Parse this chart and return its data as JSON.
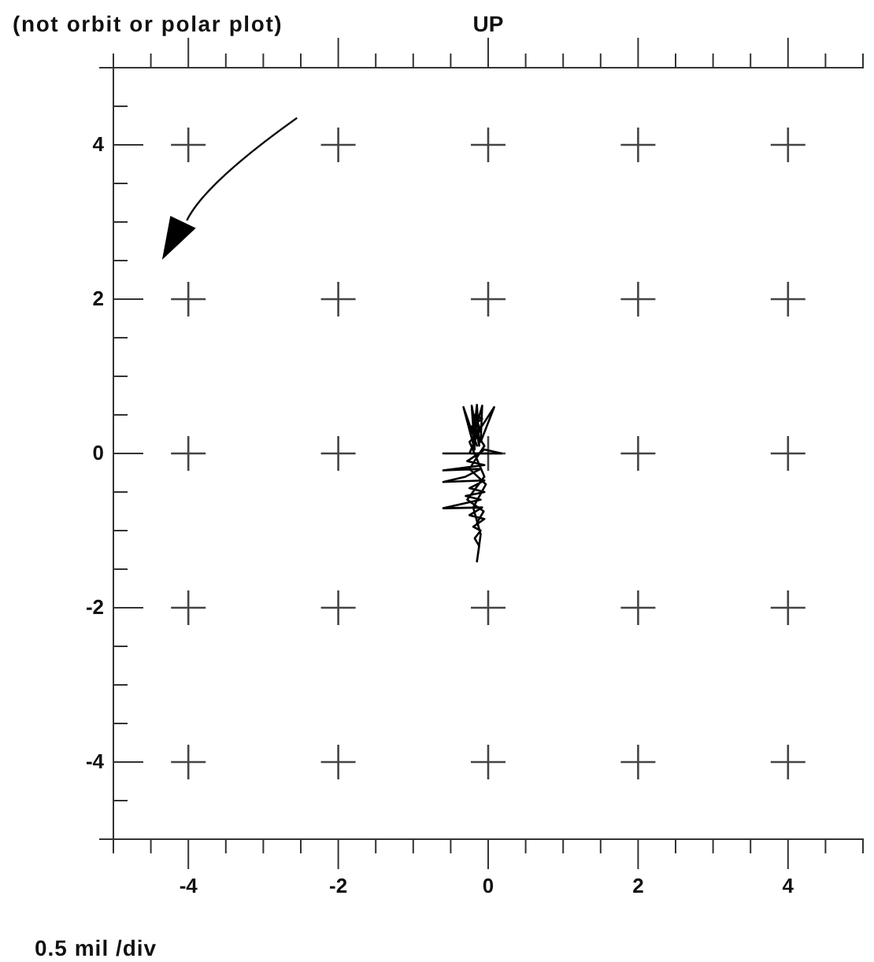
{
  "chart_data": {
    "type": "line",
    "title": "(not orbit or polar plot)",
    "annotations": [
      "UP",
      "0.5 mil /div"
    ],
    "series": [
      {
        "color": "#000000",
        "x": [
          -0.15,
          -0.33,
          -0.18,
          -0.22,
          -0.12,
          -0.15,
          -0.2,
          -0.08,
          -0.1,
          0.08,
          -0.12,
          -0.25,
          -0.6,
          -0.1,
          0.18,
          -0.05,
          -0.28,
          -0.05,
          -0.6,
          -0.1,
          -0.3,
          -0.6,
          -0.05,
          -0.25,
          -0.05,
          -0.3,
          -0.1,
          -0.6,
          -0.08,
          -0.25,
          -0.05,
          -0.2,
          -0.1,
          -0.18,
          -0.12,
          -0.15,
          -0.1,
          -0.2,
          -0.03,
          -0.25,
          -0.05,
          -0.22,
          -0.08,
          -0.18,
          -0.1,
          -0.25,
          -0.05,
          -0.28,
          -0.06,
          -0.15
        ],
        "values": [
          0.1,
          0.6,
          0.05,
          0.62,
          0.1,
          0.63,
          0.2,
          0.62,
          0.15,
          0.6,
          0.3,
          0.0,
          0.0,
          0.0,
          0.0,
          0.05,
          -0.1,
          -0.15,
          -0.22,
          -0.2,
          -0.3,
          -0.37,
          -0.35,
          -0.45,
          -0.5,
          -0.55,
          -0.6,
          -0.71,
          -0.7,
          -0.8,
          -0.85,
          -0.95,
          -1.0,
          -1.1,
          -1.2,
          -1.4,
          -1.05,
          -0.7,
          -0.4,
          -0.2,
          0.1,
          0.35,
          0.45,
          0.5,
          0.3,
          0.15,
          -0.3,
          -0.6,
          -0.75,
          -0.9
        ]
      }
    ],
    "xlim": [
      -5,
      5
    ],
    "ylim": [
      -5,
      5
    ],
    "xticks": [
      {
        "value": -5,
        "label": null
      },
      {
        "value": -4.5,
        "label": null
      },
      -4,
      {
        "value": -3.5,
        "label": null
      },
      {
        "value": -3,
        "label": null
      },
      {
        "value": -2.5,
        "label": null
      },
      -2,
      {
        "value": -1.5,
        "label": null
      },
      {
        "value": -1,
        "label": null
      },
      {
        "value": -0.5,
        "label": null
      },
      0,
      {
        "value": 0.5,
        "label": null
      },
      {
        "value": 1,
        "label": null
      },
      {
        "value": 1.5,
        "label": null
      },
      2,
      {
        "value": 2.5,
        "label": null
      },
      {
        "value": 3,
        "label": null
      },
      {
        "value": 3.5,
        "label": null
      },
      4,
      {
        "value": 4.5,
        "label": null
      },
      {
        "value": 5,
        "label": null
      }
    ],
    "yticks": [
      {
        "value": -4.5,
        "label": null
      },
      -4,
      {
        "value": -3.5,
        "label": null
      },
      {
        "value": -3,
        "label": null
      },
      {
        "value": -2.5,
        "label": null
      },
      -2,
      {
        "value": -1.5,
        "label": null
      },
      {
        "value": -1,
        "label": null
      },
      {
        "value": -0.5,
        "label": null
      },
      0,
      {
        "value": 0.5,
        "label": null
      },
      {
        "value": 1,
        "label": null
      },
      {
        "value": 1.5,
        "label": null
      },
      2,
      {
        "value": 2.5,
        "label": null
      },
      {
        "value": 3,
        "label": null
      },
      {
        "value": 3.5,
        "label": null
      },
      4,
      {
        "value": 4.5,
        "label": null
      }
    ]
  }
}
